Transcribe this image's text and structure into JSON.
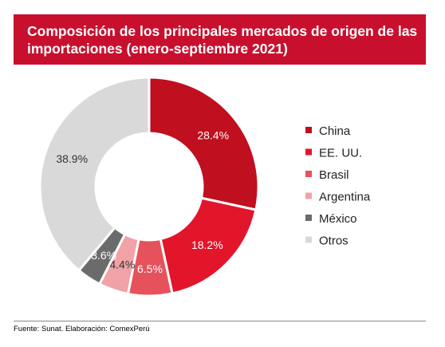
{
  "title": "Composición de los principales mercados de origen de las importaciones (enero-septiembre 2021)",
  "source": "Fuente: Sunat. Elaboración: ComexPerú",
  "chart_data": {
    "type": "pie",
    "donut": true,
    "legend_position": "right",
    "categories": [
      "China",
      "EE. UU.",
      "Brasil",
      "Argentina",
      "México",
      "Otros"
    ],
    "values": [
      28.4,
      18.2,
      6.5,
      4.4,
      3.6,
      38.9
    ],
    "labels": [
      "28.4%",
      "18.2%",
      "6.5%",
      "4.4%",
      "3.6%",
      "38.9%"
    ],
    "colors": [
      "#c00f1f",
      "#e3152b",
      "#e6525c",
      "#f0a2a6",
      "#6b6b6b",
      "#d9d9d9"
    ],
    "label_colors": [
      "#ffffff",
      "#ffffff",
      "#ffffff",
      "#333333",
      "#ffffff",
      "#333333"
    ]
  }
}
